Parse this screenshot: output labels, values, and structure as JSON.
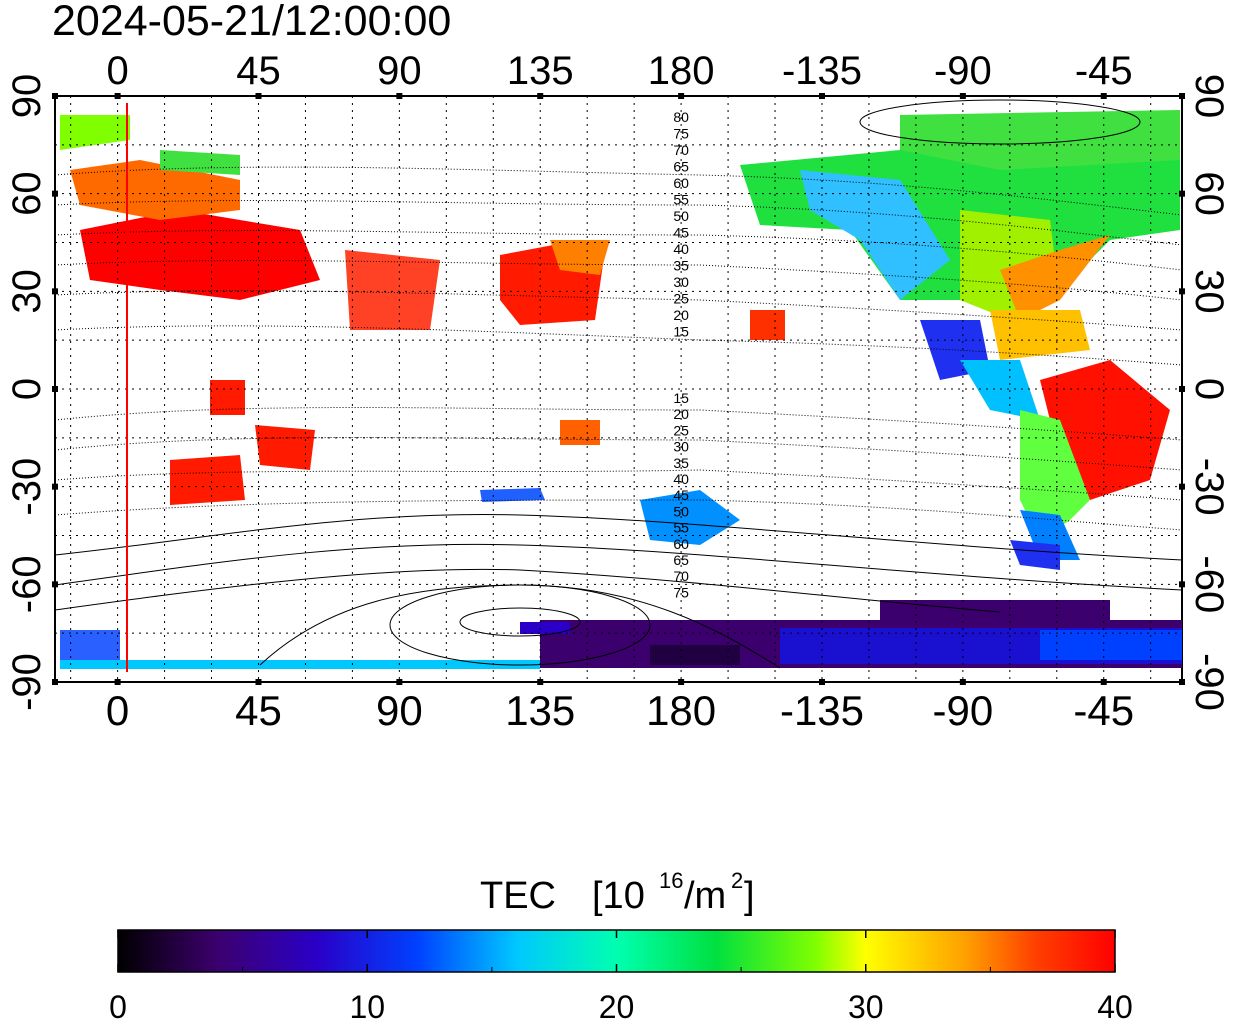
{
  "header": {
    "timestamp": "2024-05-21/12:00:00"
  },
  "map": {
    "lon_ticks_top": [
      "0",
      "45",
      "90",
      "135",
      "180",
      "-135",
      "-90",
      "-45"
    ],
    "lon_ticks_bottom": [
      "0",
      "45",
      "90",
      "135",
      "180",
      "-135",
      "-90",
      "-45"
    ],
    "lat_ticks_left": [
      "90",
      "60",
      "30",
      "0",
      "-30",
      "-60",
      "-90"
    ],
    "lat_ticks_right": [
      "90",
      "60",
      "30",
      "0",
      "-30",
      "-60",
      "-90"
    ],
    "lon_range": [
      -20,
      340
    ],
    "lat_range": [
      -90,
      90
    ],
    "grid": true,
    "highlight_meridian": 0,
    "highlight_color": "#ff0000",
    "contour_labels_upper": [
      "80",
      "75",
      "70",
      "65",
      "60",
      "55",
      "50",
      "45",
      "40",
      "35",
      "30",
      "25",
      "20",
      "15"
    ],
    "contour_labels_lower": [
      "15",
      "20",
      "25",
      "30",
      "35",
      "40",
      "45",
      "50",
      "55",
      "60",
      "65",
      "70",
      "75"
    ]
  },
  "colorbar": {
    "title": "TEC",
    "unit_base": "[10",
    "unit_exp": "16",
    "unit_mid": "/m",
    "unit_exp2": "2",
    "unit_end": "]",
    "ticks": [
      "0",
      "10",
      "20",
      "30",
      "40"
    ],
    "min": 0,
    "max": 40,
    "colors": [
      "#000000",
      "#3c006e",
      "#2a00c8",
      "#0040ff",
      "#00c8ff",
      "#00ffb0",
      "#00e040",
      "#80ff00",
      "#ffff00",
      "#ffa000",
      "#ff4000",
      "#ff0000"
    ]
  }
}
